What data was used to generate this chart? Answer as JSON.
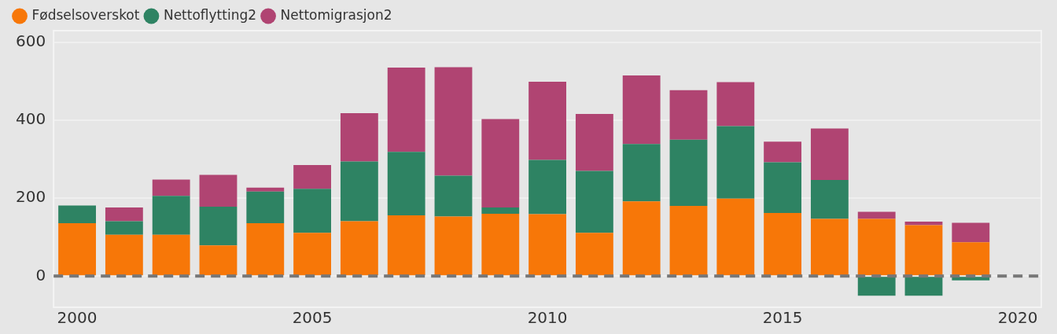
{
  "chart_data": {
    "type": "bar",
    "stacked": true,
    "x": [
      2000,
      2001,
      2002,
      2003,
      2004,
      2005,
      2006,
      2007,
      2008,
      2009,
      2010,
      2011,
      2012,
      2013,
      2014,
      2015,
      2016,
      2017,
      2018,
      2019
    ],
    "series": [
      {
        "name": "Fødselsoverskot",
        "color": "#f77708",
        "values": [
          136,
          106,
          106,
          79,
          136,
          111,
          141,
          156,
          153,
          160,
          159,
          111,
          192,
          180,
          199,
          162,
          147,
          147,
          131,
          87
        ]
      },
      {
        "name": "Nettoflytting2",
        "color": "#2e8363",
        "values": [
          45,
          35,
          100,
          99,
          81,
          113,
          153,
          163,
          105,
          16,
          139,
          159,
          147,
          170,
          186,
          130,
          100,
          -50,
          -50,
          -11
        ]
      },
      {
        "name": "Nettomigrasjon2",
        "color": "#b04472",
        "values": [
          0,
          35,
          42,
          82,
          10,
          61,
          124,
          216,
          278,
          227,
          201,
          146,
          176,
          127,
          113,
          53,
          132,
          18,
          9,
          50
        ]
      }
    ],
    "xlim": [
      1999.5,
      2020.5
    ],
    "xticks": [
      2000,
      2005,
      2010,
      2015,
      2020
    ],
    "ylim": [
      -80,
      630
    ],
    "yticks": [
      0,
      200,
      400,
      600
    ],
    "grid": "y",
    "legend": "top left",
    "marker": "circle",
    "ref_lines": [
      {
        "axis": "y",
        "value": 0,
        "color": "#777777",
        "line_style": "dashed"
      }
    ]
  }
}
